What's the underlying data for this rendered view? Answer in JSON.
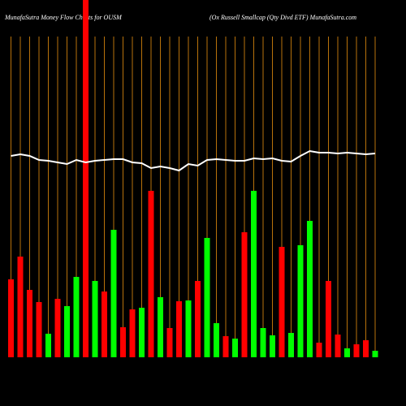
{
  "chart_data": {
    "type": "bar",
    "title": "MunafaSutra  Money Flow  Charts for OUSM",
    "subtitle": "(Ox Russell Smallcap (Qty Divd ETF) MunafaSutra.com",
    "categories": [
      null,
      null,
      null,
      null,
      null,
      null,
      null,
      null,
      null,
      null,
      null,
      null,
      null,
      null,
      null,
      null,
      null,
      null,
      null,
      null,
      null,
      null,
      null,
      null,
      null,
      null,
      null,
      null,
      null,
      null,
      null,
      null,
      null,
      null,
      null,
      null,
      null,
      null,
      null,
      null
    ],
    "series": [
      {
        "values": [
          96,
          124,
          83,
          68,
          29,
          72,
          63,
          99,
          440,
          94,
          81,
          157,
          37,
          59,
          61,
          205,
          74,
          36,
          69,
          70,
          94,
          147,
          42,
          26,
          23,
          154,
          205,
          36,
          27,
          136,
          30,
          138,
          168,
          18,
          94,
          28,
          11,
          16,
          21,
          8
        ],
        "colors": [
          "#ff0000",
          "#ff0000",
          "#ff0000",
          "#ff0000",
          "#00ff00",
          "#ff0000",
          "#00ff00",
          "#00ff00",
          "#ff0000",
          "#00ff00",
          "#ff0000",
          "#00ff00",
          "#ff0000",
          "#ff0000",
          "#00ff00",
          "#ff0000",
          "#00ff00",
          "#ff0000",
          "#ff0000",
          "#00ff00",
          "#ff0000",
          "#00ff00",
          "#00ff00",
          "#ff0000",
          "#00ff00",
          "#ff0000",
          "#00ff00",
          "#00ff00",
          "#00ff00",
          "#ff0000",
          "#00ff00",
          "#00ff00",
          "#00ff00",
          "#ff0000",
          "#ff0000",
          "#ff0000",
          "#00ff00",
          "#ff0000",
          "#ff0000",
          "#00ff00"
        ]
      },
      {
        "type": "line",
        "color": "#ffffff",
        "values": [
          248,
          250,
          248,
          243,
          242,
          240,
          238,
          243,
          240,
          242,
          243,
          244,
          244,
          240,
          239,
          233,
          235,
          233,
          230,
          238,
          236,
          243,
          244,
          243,
          242,
          242,
          245,
          244,
          245,
          242,
          241,
          248,
          254,
          252,
          252,
          251,
          252,
          251,
          250,
          251
        ]
      }
    ],
    "ylim": [
      0,
      440
    ],
    "grid_color": "#b8720b"
  }
}
